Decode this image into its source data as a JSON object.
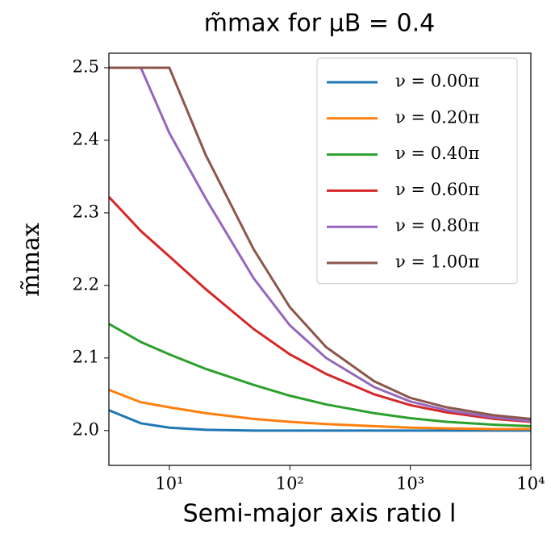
{
  "chart_data": {
    "type": "line",
    "title": "m̃max for μB = 0.4",
    "x_label": "Semi-major axis ratio l",
    "y_label": "m̃max",
    "x_scale": "log",
    "x": [
      3.15,
      5.8,
      10,
      20,
      50,
      100,
      200,
      500,
      1000,
      2000,
      5000,
      10000
    ],
    "series": [
      {
        "name": "ν = 0.00π",
        "color": "#1f77b4",
        "values": [
          2.028,
          2.01,
          2.004,
          2.001,
          2.0,
          2.0,
          2.0,
          2.0,
          2.0,
          2.0,
          2.0,
          2.0
        ]
      },
      {
        "name": "ν = 0.20π",
        "color": "#ff7f0e",
        "values": [
          2.056,
          2.039,
          2.032,
          2.024,
          2.016,
          2.012,
          2.009,
          2.006,
          2.004,
          2.003,
          2.002,
          2.002
        ]
      },
      {
        "name": "ν = 0.40π",
        "color": "#2ca02c",
        "values": [
          2.147,
          2.122,
          2.105,
          2.085,
          2.063,
          2.048,
          2.036,
          2.024,
          2.017,
          2.012,
          2.008,
          2.006
        ]
      },
      {
        "name": "ν = 0.60π",
        "color": "#d62728",
        "values": [
          2.322,
          2.275,
          2.24,
          2.195,
          2.14,
          2.105,
          2.078,
          2.05,
          2.035,
          2.025,
          2.016,
          2.012
        ]
      },
      {
        "name": "ν = 0.80π",
        "color": "#9467bd",
        "values": [
          2.5,
          2.5,
          2.41,
          2.32,
          2.21,
          2.145,
          2.1,
          2.06,
          2.04,
          2.028,
          2.018,
          2.013
        ]
      },
      {
        "name": "ν = 1.00π",
        "color": "#8c564b",
        "values": [
          2.5,
          2.5,
          2.5,
          2.38,
          2.25,
          2.17,
          2.115,
          2.068,
          2.045,
          2.032,
          2.021,
          2.016
        ]
      }
    ],
    "xlim": [
      3.15,
      10000
    ],
    "ylim": [
      1.952,
      2.52
    ],
    "xticks": [
      {
        "value": 10,
        "label": "10¹"
      },
      {
        "value": 100,
        "label": "10²"
      },
      {
        "value": 1000,
        "label": "10³"
      },
      {
        "value": 10000,
        "label": "10⁴"
      }
    ],
    "yticks": [
      {
        "value": 2,
        "label": "2.0"
      },
      2.1,
      2.2,
      2.3,
      2.4,
      2.5
    ],
    "legend": "upper right"
  }
}
